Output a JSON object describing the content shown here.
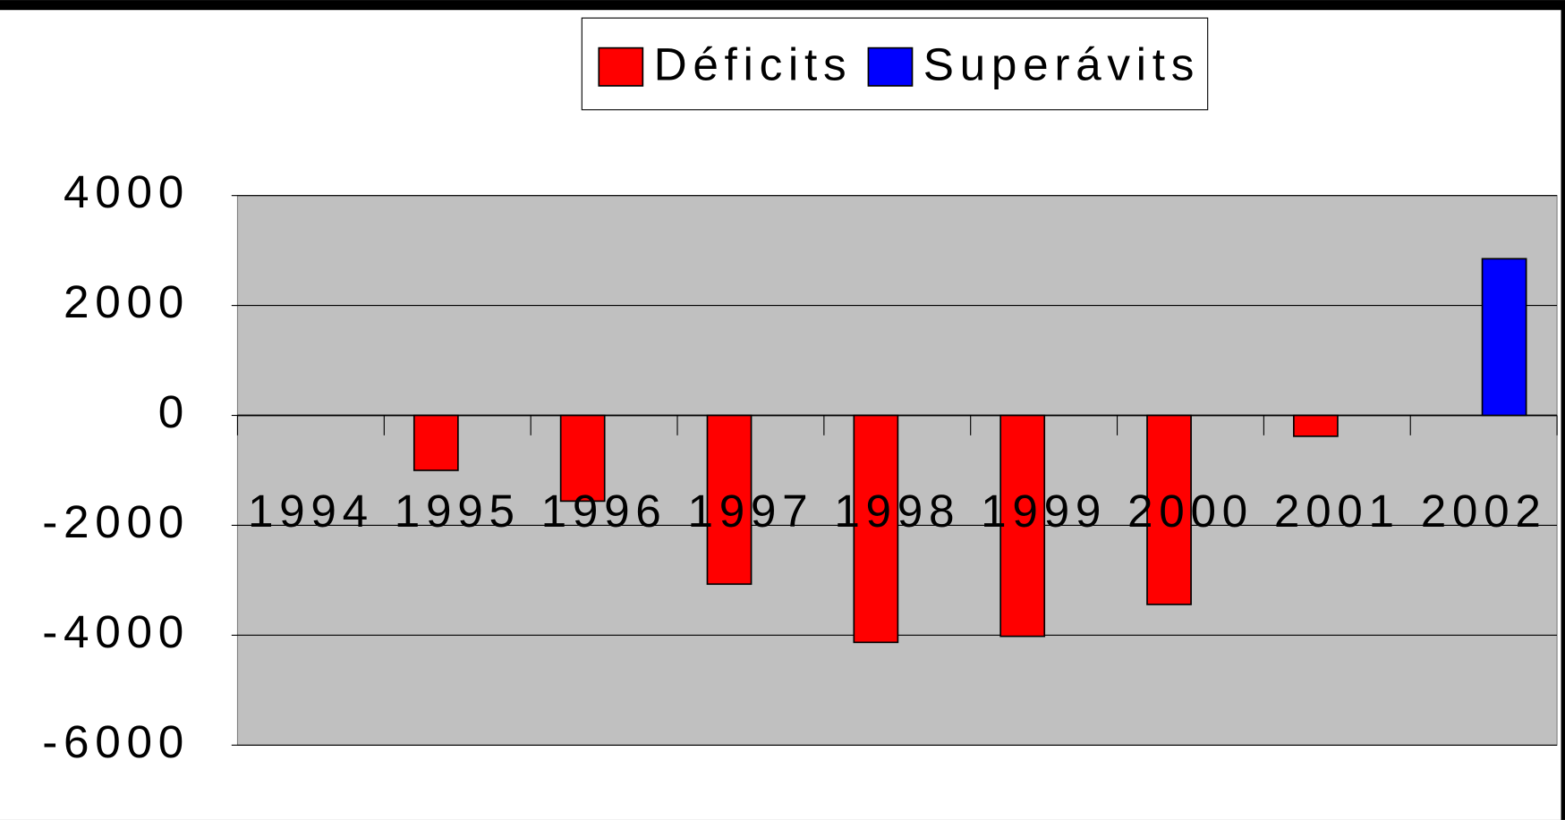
{
  "chart_data": {
    "type": "bar",
    "categories": [
      "1994",
      "1995",
      "1996",
      "1997",
      "1998",
      "1999",
      "2000",
      "2001",
      "2002"
    ],
    "series": [
      {
        "name": "Déficits",
        "color": "#ff0000",
        "values": [
          null,
          -1000,
          -1560,
          -3070,
          -4130,
          -4020,
          -3440,
          -380,
          null
        ]
      },
      {
        "name": "Superávits",
        "color": "#0000ff",
        "values": [
          null,
          null,
          null,
          null,
          null,
          null,
          null,
          null,
          2850
        ]
      }
    ],
    "ylim": [
      -6000,
      4000
    ],
    "yticks": [
      -6000,
      -4000,
      -2000,
      0,
      2000,
      4000
    ],
    "grid": true,
    "legend": "top"
  }
}
